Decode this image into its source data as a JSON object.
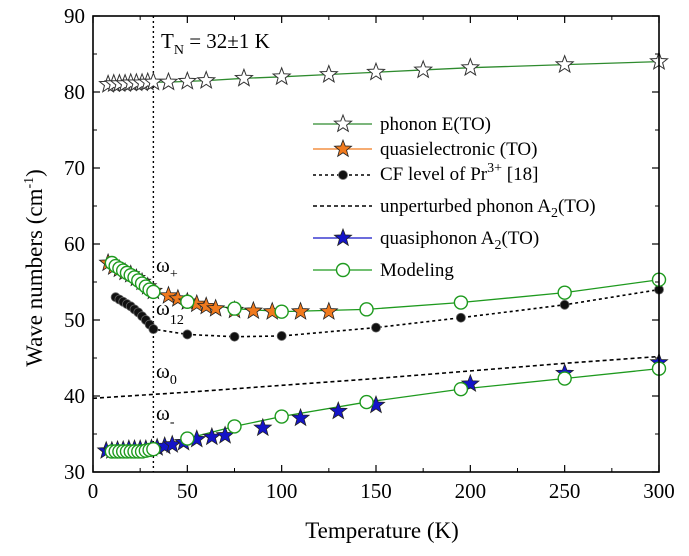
{
  "chart_data": {
    "type": "scatter",
    "xlabel": "Temperature (K)",
    "ylabel": "Wave numbers (cm",
    "ylabel_sup": "-1",
    "ylabel_tail": ")",
    "xlim": [
      0,
      300
    ],
    "ylim": [
      30,
      90
    ],
    "xticks": [
      0,
      50,
      100,
      150,
      200,
      250,
      300
    ],
    "yticks": [
      30,
      40,
      50,
      60,
      70,
      80,
      90
    ],
    "grid": false,
    "legend_position": "right",
    "vline_x": 32,
    "annotations": {
      "tn": {
        "base": "T",
        "sub": "N",
        "tail": " = 32±1 K"
      },
      "omega_plus": {
        "base": "ω",
        "sub": "+"
      },
      "omega_12": {
        "base": "ω",
        "sub": "12"
      },
      "omega_0": {
        "base": "ω",
        "sub": "0"
      },
      "omega_minus": {
        "base": "ω",
        "sub": "-"
      }
    },
    "series": [
      {
        "name": "phonon E(TO)",
        "marker": "star-open",
        "color": "#2e8b2e",
        "line": "solid",
        "points": [
          [
            8,
            81.0
          ],
          [
            11,
            81.1
          ],
          [
            14,
            81.1
          ],
          [
            17,
            81.1
          ],
          [
            20,
            81.2
          ],
          [
            23,
            81.2
          ],
          [
            26,
            81.2
          ],
          [
            29,
            81.3
          ],
          [
            32,
            81.3
          ],
          [
            40,
            81.3
          ],
          [
            50,
            81.4
          ],
          [
            60,
            81.5
          ],
          [
            80,
            81.8
          ],
          [
            100,
            82.0
          ],
          [
            125,
            82.3
          ],
          [
            150,
            82.6
          ],
          [
            175,
            82.9
          ],
          [
            200,
            83.2
          ],
          [
            250,
            83.6
          ],
          [
            300,
            84.0
          ]
        ]
      },
      {
        "name": "quasielectronic (TO)",
        "marker": "star-filled",
        "color": "#f07a1e",
        "line": "solid",
        "points": [
          [
            8,
            57.5
          ],
          [
            11,
            57.0
          ],
          [
            14,
            56.7
          ],
          [
            17,
            56.3
          ],
          [
            20,
            56.0
          ],
          [
            23,
            55.5
          ],
          [
            26,
            55.0
          ],
          [
            29,
            54.4
          ],
          [
            32,
            53.8
          ],
          [
            40,
            53.2
          ],
          [
            45,
            52.8
          ],
          [
            50,
            52.4
          ],
          [
            55,
            52.1
          ],
          [
            60,
            51.8
          ],
          [
            65,
            51.5
          ],
          [
            75,
            51.3
          ],
          [
            85,
            51.2
          ],
          [
            95,
            51.1
          ],
          [
            110,
            51.1
          ],
          [
            125,
            51.1
          ]
        ]
      },
      {
        "name": "CF level of Pr",
        "name_sup": "3+",
        "name_tail": " [18]",
        "marker": "ball",
        "color": "#000000",
        "line": "dotted",
        "points": [
          [
            12,
            53.0
          ],
          [
            14,
            52.7
          ],
          [
            16,
            52.4
          ],
          [
            18,
            52.1
          ],
          [
            20,
            51.8
          ],
          [
            22,
            51.4
          ],
          [
            24,
            51.0
          ],
          [
            26,
            50.5
          ],
          [
            28,
            50.0
          ],
          [
            30,
            49.4
          ],
          [
            32,
            48.8
          ],
          [
            50,
            48.1
          ],
          [
            75,
            47.8
          ],
          [
            100,
            47.9
          ],
          [
            150,
            49.0
          ],
          [
            195,
            50.3
          ],
          [
            250,
            52.0
          ],
          [
            300,
            54.0
          ]
        ]
      },
      {
        "name": "unperturbed phonon A",
        "name_sub": "2",
        "name_tail": "(TO)",
        "marker": "none",
        "color": "#000000",
        "line": "dashed",
        "points": [
          [
            0,
            39.7
          ],
          [
            50,
            40.5
          ],
          [
            100,
            41.4
          ],
          [
            150,
            42.3
          ],
          [
            200,
            43.3
          ],
          [
            250,
            44.3
          ],
          [
            300,
            45.2
          ]
        ]
      },
      {
        "name": "quasiphonon A",
        "name_sub": "2",
        "name_tail": "(TO)",
        "marker": "star-filled",
        "color": "#1414c8",
        "line": "solid",
        "points": [
          [
            7,
            32.8
          ],
          [
            10,
            32.8
          ],
          [
            13,
            32.9
          ],
          [
            16,
            32.9
          ],
          [
            19,
            33.0
          ],
          [
            22,
            33.0
          ],
          [
            25,
            33.0
          ],
          [
            28,
            33.0
          ],
          [
            31,
            33.1
          ],
          [
            34,
            33.2
          ],
          [
            38,
            33.4
          ],
          [
            42,
            33.6
          ],
          [
            48,
            33.9
          ],
          [
            55,
            34.3
          ],
          [
            63,
            34.6
          ],
          [
            70,
            34.8
          ],
          [
            90,
            35.8
          ],
          [
            110,
            37.1
          ],
          [
            130,
            38.0
          ],
          [
            150,
            38.8
          ],
          [
            200,
            41.6
          ],
          [
            250,
            43.0
          ],
          [
            300,
            44.4
          ]
        ]
      },
      {
        "name": "Modeling",
        "marker": "circle-open",
        "color": "#1e9a1e",
        "line": "solid",
        "upper": [
          [
            10,
            57.5
          ],
          [
            12,
            57.1
          ],
          [
            14,
            56.8
          ],
          [
            16,
            56.5
          ],
          [
            18,
            56.2
          ],
          [
            20,
            55.9
          ],
          [
            22,
            55.6
          ],
          [
            24,
            55.2
          ],
          [
            26,
            54.8
          ],
          [
            28,
            54.4
          ],
          [
            30,
            54.0
          ],
          [
            32,
            53.7
          ],
          [
            50,
            52.4
          ],
          [
            75,
            51.5
          ],
          [
            100,
            51.1
          ],
          [
            145,
            51.4
          ],
          [
            195,
            52.3
          ],
          [
            250,
            53.6
          ],
          [
            300,
            55.3
          ]
        ],
        "lower": [
          [
            10,
            32.7
          ],
          [
            12,
            32.7
          ],
          [
            14,
            32.7
          ],
          [
            16,
            32.7
          ],
          [
            18,
            32.7
          ],
          [
            20,
            32.7
          ],
          [
            22,
            32.7
          ],
          [
            24,
            32.7
          ],
          [
            26,
            32.7
          ],
          [
            28,
            32.8
          ],
          [
            30,
            32.9
          ],
          [
            32,
            33.0
          ],
          [
            50,
            34.4
          ],
          [
            75,
            36.0
          ],
          [
            100,
            37.3
          ],
          [
            145,
            39.2
          ],
          [
            195,
            40.9
          ],
          [
            250,
            42.3
          ],
          [
            300,
            43.6
          ]
        ]
      }
    ]
  }
}
